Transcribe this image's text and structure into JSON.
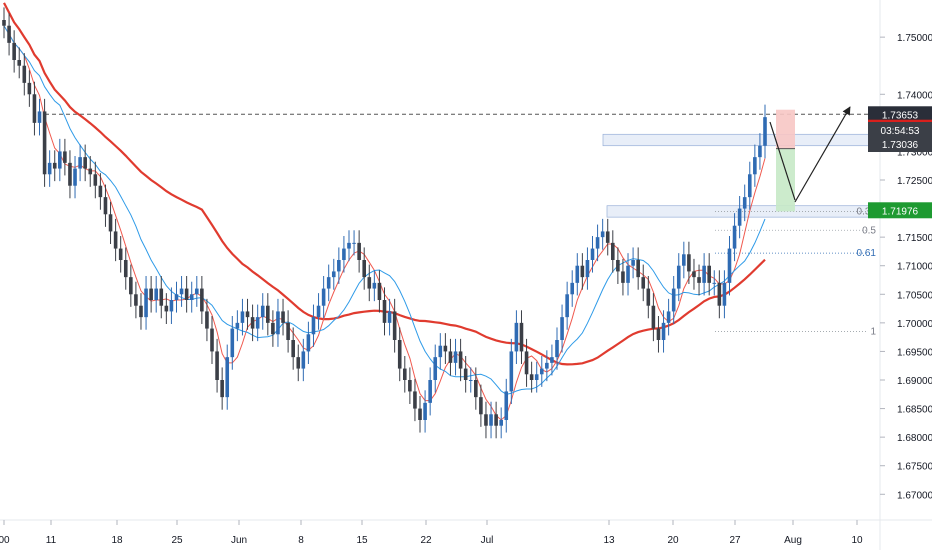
{
  "chart_data": {
    "type": "candlestick",
    "instrument_note": "",
    "x_tick_labels": [
      "00",
      "11",
      "18",
      "25",
      "Jun",
      "8",
      "15",
      "22",
      "Jul",
      "13",
      "20",
      "27",
      "Aug",
      "10"
    ],
    "y_tick_labels": [
      "1.75000",
      "1.74000",
      "1.73000",
      "1.72500",
      "1.72000",
      "1.71500",
      "1.71000",
      "1.70500",
      "1.70000",
      "1.69500",
      "1.69000",
      "1.68500",
      "1.68000",
      "1.67500",
      "1.67000"
    ],
    "y_ticks": [
      1.75,
      1.74,
      1.73,
      1.725,
      1.72,
      1.715,
      1.71,
      1.705,
      1.7,
      1.695,
      1.69,
      1.685,
      1.68,
      1.675,
      1.67
    ],
    "ylim": [
      1.6655,
      1.7565
    ],
    "price_labels": {
      "last_price": "1.73653",
      "current_price": "1.73036",
      "countdown": "03:54:53",
      "level_green": "1.71976",
      "hidden_red": "1.73..."
    },
    "fib_labels": [
      "0",
      "0.38",
      "0.5",
      "0.61",
      "1"
    ],
    "fib_levels": [
      1.7365,
      1.7195,
      1.7162,
      1.7122,
      1.6985
    ],
    "resistance_line": 1.7365,
    "ma_200_color": "#e03b2f",
    "ma_fast_red_color": "#f05a4f",
    "ma_fast_blue_color": "#2f9be8",
    "candle_up_color": "#2f6bb3",
    "candle_down_color": "#3b3f47",
    "trade": {
      "entry": 1.7305,
      "stop": 1.7365,
      "target": 1.7195
    },
    "series": [
      {
        "name": "",
        "values": [
          1.752,
          1.749,
          1.746,
          1.745,
          1.742,
          1.74,
          1.735,
          1.737,
          1.726,
          1.728,
          1.727,
          1.73,
          1.728,
          1.724,
          1.727,
          1.729,
          1.727,
          1.726,
          1.724,
          1.722,
          1.719,
          1.716,
          1.713,
          1.711,
          1.708,
          1.705,
          1.703,
          1.701,
          1.706,
          1.704,
          1.706,
          1.703,
          1.702,
          1.704,
          1.705,
          1.706,
          1.704,
          1.705,
          1.706,
          1.702,
          1.699,
          1.695,
          1.69,
          1.687,
          1.694,
          1.699,
          1.7,
          1.702,
          1.701,
          1.699,
          1.701,
          1.703,
          1.7,
          1.698,
          1.702,
          1.7,
          1.697,
          1.694,
          1.692,
          1.695,
          1.698,
          1.701,
          1.703,
          1.706,
          1.708,
          1.709,
          1.711,
          1.713,
          1.714,
          1.714,
          1.711,
          1.708,
          1.706,
          1.707,
          1.704,
          1.7,
          1.702,
          1.697,
          1.692,
          1.69,
          1.688,
          1.685,
          1.683,
          1.686,
          1.69,
          1.694,
          1.696,
          1.695,
          1.693,
          1.695,
          1.692,
          1.69,
          1.69,
          1.687,
          1.684,
          1.682,
          1.684,
          1.682,
          1.683,
          1.688,
          1.695,
          1.7,
          1.695,
          1.691,
          1.69,
          1.691,
          1.692,
          1.693,
          1.694,
          1.697,
          1.701,
          1.705,
          1.707,
          1.71,
          1.708,
          1.711,
          1.713,
          1.715,
          1.716,
          1.714,
          1.711,
          1.709,
          1.707,
          1.71,
          1.711,
          1.708,
          1.706,
          1.703,
          1.699,
          1.697,
          1.7,
          1.702,
          1.706,
          1.71,
          1.712,
          1.709,
          1.708,
          1.707,
          1.71,
          1.707,
          1.707,
          1.703,
          1.707,
          1.713,
          1.717,
          1.72,
          1.722,
          1.726,
          1.729,
          1.731,
          1.736
        ]
      }
    ]
  }
}
